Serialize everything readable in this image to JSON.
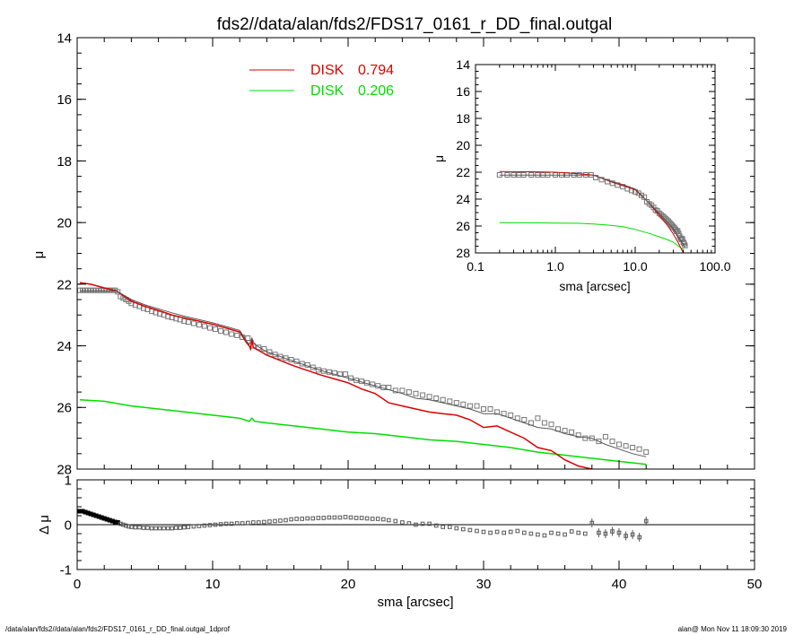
{
  "title": "fds2//data/alan/fds2/FDS17_0161_r_DD_final.outgal",
  "footer": {
    "left": "/data/alan/fds2//data/alan/fds2/FDS17_0161_r_DD_final.outgal_1dprof",
    "right": "alan@  Mon Nov 11 18:09:30 2019"
  },
  "colors": {
    "disk1": "#dd0000",
    "disk2": "#00dd00",
    "model": "#555555",
    "data": "#777777"
  },
  "chart_data": [
    {
      "id": "main",
      "type": "line",
      "xlabel": "",
      "ylabel": "μ",
      "xlim": [
        0,
        50
      ],
      "ylim": [
        28,
        14
      ],
      "x_ticks": [
        0,
        10,
        20,
        30,
        40,
        50
      ],
      "y_ticks": [
        14,
        16,
        18,
        20,
        22,
        24,
        26,
        28
      ],
      "legend": [
        {
          "name": "DISK",
          "value": "0.794",
          "color": "#dd0000"
        },
        {
          "name": "DISK",
          "value": "0.206",
          "color": "#00dd00"
        }
      ],
      "series": [
        {
          "name": "DISK 0.794",
          "color": "#dd0000",
          "x": [
            0.2,
            1,
            2,
            2.9,
            4,
            5,
            6,
            7,
            8,
            10,
            12,
            12.5,
            12.7,
            12.8,
            12.9,
            13,
            14,
            16,
            18,
            20,
            21,
            22,
            23,
            24,
            25,
            26,
            27,
            28,
            29,
            30,
            31,
            32,
            33,
            34,
            35,
            36,
            37,
            38,
            39,
            40,
            41,
            42
          ],
          "y": [
            21.95,
            22.0,
            22.12,
            22.22,
            22.55,
            22.72,
            22.85,
            23.0,
            23.1,
            23.3,
            23.55,
            23.9,
            24.0,
            24.1,
            23.8,
            24.05,
            24.3,
            24.65,
            24.95,
            25.2,
            25.4,
            25.55,
            25.85,
            25.95,
            26.05,
            26.15,
            26.2,
            26.25,
            26.4,
            26.65,
            26.6,
            26.8,
            27.0,
            27.3,
            27.4,
            27.7,
            27.9,
            28.0,
            28.15,
            28.3,
            28.5,
            28.7
          ]
        },
        {
          "name": "DISK 0.206",
          "color": "#00dd00",
          "x": [
            0.2,
            2,
            4,
            6,
            8,
            10,
            12,
            12.7,
            12.9,
            13.1,
            14,
            16,
            18,
            20,
            22,
            24,
            26,
            28,
            30,
            32,
            34,
            36,
            38,
            40,
            42
          ],
          "y": [
            25.75,
            25.8,
            25.95,
            26.05,
            26.15,
            26.25,
            26.35,
            26.45,
            26.35,
            26.45,
            26.5,
            26.6,
            26.7,
            26.8,
            26.85,
            26.95,
            27.05,
            27.1,
            27.2,
            27.3,
            27.45,
            27.55,
            27.65,
            27.75,
            27.85
          ]
        },
        {
          "name": "model",
          "color": "#555555",
          "x": [
            0.2,
            1,
            2,
            2.9,
            4,
            5,
            6,
            7,
            8,
            10,
            12,
            12.5,
            12.7,
            12.9,
            13.1,
            14,
            16,
            18,
            20,
            22,
            24,
            25,
            26,
            27,
            28,
            29,
            30,
            31,
            32,
            33,
            34,
            35,
            36,
            37,
            38,
            39,
            40,
            41,
            42
          ],
          "y": [
            22.22,
            22.22,
            22.22,
            22.22,
            22.5,
            22.67,
            22.8,
            22.93,
            23.05,
            23.25,
            23.5,
            23.85,
            23.95,
            23.75,
            23.95,
            24.2,
            24.5,
            24.8,
            25.05,
            25.3,
            25.55,
            25.7,
            25.75,
            25.85,
            25.95,
            26.05,
            26.2,
            26.2,
            26.35,
            26.5,
            26.65,
            26.7,
            26.85,
            26.95,
            27.0,
            27.2,
            27.35,
            27.5,
            27.6
          ]
        },
        {
          "name": "data",
          "color": "#777777",
          "x": [
            0.2,
            0.4,
            0.6,
            0.8,
            1.0,
            1.2,
            1.4,
            1.6,
            1.8,
            2.0,
            2.2,
            2.4,
            2.6,
            2.8,
            3.0,
            3.2,
            3.4,
            3.6,
            3.8,
            4.0,
            4.3,
            4.6,
            4.9,
            5.2,
            5.5,
            5.8,
            6.1,
            6.4,
            6.7,
            7.0,
            7.3,
            7.6,
            7.9,
            8.2,
            8.6,
            9.0,
            9.4,
            9.8,
            10.2,
            10.6,
            11.0,
            11.4,
            11.8,
            12.2,
            12.6,
            13.0,
            13.4,
            13.8,
            14.2,
            14.6,
            15.0,
            15.4,
            15.8,
            16.2,
            16.6,
            17.0,
            17.4,
            17.8,
            18.2,
            18.6,
            19.0,
            19.4,
            19.8,
            20.2,
            20.6,
            21.0,
            21.4,
            21.8,
            22.2,
            22.6,
            23.0,
            23.5,
            24.0,
            24.5,
            25.0,
            25.5,
            26.0,
            26.5,
            27.0,
            27.5,
            28.0,
            28.5,
            29.0,
            29.5,
            30.0,
            30.5,
            31.0,
            31.5,
            32.0,
            32.5,
            33.0,
            33.5,
            34.0,
            34.5,
            35.0,
            35.5,
            36.0,
            36.5,
            37.0,
            37.5,
            38.0,
            38.5,
            39.0,
            39.5,
            40.0,
            40.5,
            41.0,
            41.5,
            42.0
          ],
          "y": [
            22.2,
            22.2,
            22.2,
            22.2,
            22.2,
            22.2,
            22.2,
            22.2,
            22.2,
            22.2,
            22.2,
            22.2,
            22.2,
            22.2,
            22.25,
            22.4,
            22.45,
            22.5,
            22.55,
            22.62,
            22.68,
            22.72,
            22.78,
            22.82,
            22.88,
            22.92,
            22.96,
            23.0,
            23.05,
            23.08,
            23.12,
            23.15,
            23.2,
            23.23,
            23.27,
            23.32,
            23.36,
            23.42,
            23.46,
            23.52,
            23.56,
            23.62,
            23.66,
            23.72,
            23.75,
            24.0,
            24.05,
            24.1,
            24.2,
            24.28,
            24.35,
            24.4,
            24.45,
            24.5,
            24.58,
            24.62,
            24.7,
            24.78,
            24.82,
            24.85,
            24.88,
            24.92,
            24.92,
            25.05,
            25.12,
            25.15,
            25.2,
            25.25,
            25.3,
            25.35,
            25.35,
            25.45,
            25.45,
            25.5,
            25.55,
            25.6,
            25.65,
            25.7,
            25.75,
            25.8,
            25.85,
            25.9,
            25.95,
            25.95,
            26.05,
            26.05,
            26.15,
            26.2,
            26.25,
            26.35,
            26.4,
            26.5,
            26.35,
            26.5,
            26.55,
            26.7,
            26.75,
            26.8,
            26.9,
            27.0,
            27.0,
            27.1,
            26.95,
            27.1,
            27.2,
            27.25,
            27.3,
            27.35,
            27.45
          ]
        }
      ]
    },
    {
      "id": "residual",
      "type": "scatter",
      "xlabel": "sma [arcsec]",
      "ylabel": "Δ μ",
      "xlim": [
        0,
        50
      ],
      "ylim": [
        -1,
        1
      ],
      "x_ticks": [
        0,
        10,
        20,
        30,
        40,
        50
      ],
      "y_ticks": [
        -1,
        0,
        1
      ],
      "series": [
        {
          "name": "residual",
          "color": "#555555",
          "x": [
            0.2,
            0.4,
            0.6,
            0.8,
            1.0,
            1.2,
            1.4,
            1.6,
            1.8,
            2.0,
            2.2,
            2.4,
            2.6,
            2.8,
            3.0,
            3.2,
            3.4,
            3.6,
            3.8,
            4.0,
            4.3,
            4.6,
            4.9,
            5.2,
            5.5,
            5.8,
            6.1,
            6.4,
            6.7,
            7.0,
            7.3,
            7.6,
            7.9,
            8.2,
            8.6,
            9.0,
            9.4,
            9.8,
            10.2,
            10.6,
            11.0,
            11.4,
            11.8,
            12.2,
            12.6,
            13.0,
            13.4,
            13.8,
            14.2,
            14.6,
            15.0,
            15.4,
            15.8,
            16.2,
            16.6,
            17.0,
            17.4,
            17.8,
            18.2,
            18.6,
            19.0,
            19.4,
            19.8,
            20.2,
            20.6,
            21.0,
            21.4,
            21.8,
            22.2,
            22.6,
            23.0,
            23.5,
            24.0,
            24.5,
            25.0,
            25.5,
            26.0,
            26.5,
            27.0,
            27.5,
            28.0,
            28.5,
            29.0,
            29.5,
            30.0,
            30.5,
            31.0,
            31.5,
            32.0,
            32.5,
            33.0,
            33.5,
            34.0,
            34.5,
            35.0,
            35.5,
            36.0,
            36.5,
            37.0,
            37.5,
            38.0,
            38.5,
            39.0,
            39.5,
            40.0,
            40.5,
            41.0,
            41.5,
            42.0
          ],
          "y": [
            0.3,
            0.3,
            0.28,
            0.26,
            0.24,
            0.22,
            0.2,
            0.18,
            0.16,
            0.14,
            0.12,
            0.1,
            0.08,
            0.06,
            0.05,
            0.02,
            0.0,
            -0.02,
            -0.04,
            -0.05,
            -0.06,
            -0.06,
            -0.07,
            -0.07,
            -0.08,
            -0.08,
            -0.08,
            -0.08,
            -0.08,
            -0.08,
            -0.07,
            -0.07,
            -0.06,
            -0.05,
            -0.04,
            -0.03,
            -0.02,
            -0.01,
            0.0,
            0.01,
            0.02,
            0.02,
            0.03,
            0.03,
            0.04,
            0.05,
            0.05,
            0.06,
            0.07,
            0.08,
            0.09,
            0.1,
            0.12,
            0.13,
            0.13,
            0.14,
            0.14,
            0.15,
            0.15,
            0.16,
            0.16,
            0.16,
            0.17,
            0.16,
            0.15,
            0.15,
            0.14,
            0.13,
            0.13,
            0.12,
            0.1,
            0.08,
            0.05,
            0.03,
            0.0,
            0.02,
            0.02,
            -0.02,
            -0.05,
            -0.05,
            -0.08,
            -0.1,
            -0.12,
            -0.14,
            -0.16,
            -0.18,
            -0.16,
            -0.18,
            -0.16,
            -0.14,
            -0.18,
            -0.2,
            -0.22,
            -0.24,
            -0.18,
            -0.2,
            -0.22,
            -0.15,
            -0.18,
            -0.2,
            0.04,
            -0.18,
            -0.2,
            -0.15,
            -0.18,
            -0.25,
            -0.22,
            -0.28,
            0.08
          ]
        }
      ]
    },
    {
      "id": "inset",
      "type": "line",
      "xlabel": "sma [arcsec]",
      "ylabel": "μ",
      "xscale": "log",
      "xlim": [
        0.1,
        100
      ],
      "ylim": [
        28,
        14
      ],
      "x_tick_labels": [
        "0.1",
        "1.0",
        "10.0",
        "100.0"
      ],
      "x_ticks": [
        0.1,
        1,
        10,
        100
      ],
      "y_ticks": [
        14,
        16,
        18,
        20,
        22,
        24,
        26,
        28
      ],
      "series": [
        {
          "name": "DISK 0.794",
          "color": "#dd0000",
          "x": [
            0.2,
            0.5,
            1,
            2,
            3,
            5,
            7,
            10,
            15,
            20,
            25,
            30,
            35,
            40,
            42
          ],
          "y": [
            21.95,
            21.97,
            22.0,
            22.12,
            22.22,
            22.72,
            23.0,
            23.3,
            24.3,
            25.2,
            25.9,
            26.6,
            27.3,
            28.0,
            28.3
          ]
        },
        {
          "name": "DISK 0.206",
          "color": "#00dd00",
          "x": [
            0.2,
            0.5,
            1,
            2,
            3,
            5,
            7,
            10,
            15,
            20,
            25,
            30,
            35,
            40
          ],
          "y": [
            25.75,
            25.76,
            25.78,
            25.8,
            25.85,
            25.95,
            26.05,
            26.25,
            26.55,
            26.8,
            27.0,
            27.2,
            27.5,
            27.75
          ]
        },
        {
          "name": "model",
          "color": "#555555",
          "x": [
            0.2,
            0.5,
            1,
            2,
            3,
            5,
            7,
            10,
            15,
            20,
            25,
            30,
            35,
            40,
            42
          ],
          "y": [
            22.22,
            22.22,
            22.22,
            22.22,
            22.22,
            22.67,
            22.93,
            23.25,
            24.3,
            25.05,
            25.7,
            26.2,
            26.85,
            27.35,
            27.6
          ]
        },
        {
          "name": "data",
          "color": "#777777",
          "x": [
            0.2,
            0.25,
            0.3,
            0.35,
            0.4,
            0.5,
            0.6,
            0.7,
            0.8,
            1.0,
            1.2,
            1.4,
            1.7,
            2.0,
            2.4,
            2.8,
            3.2,
            3.8,
            4.5,
            5.2,
            6.0,
            7.0,
            8.0,
            9.0,
            10.0,
            11.0,
            12.0,
            13.0,
            14.0,
            15.0,
            16.0,
            17.0,
            18.0,
            19.0,
            20.0,
            21.0,
            22.0,
            23.0,
            24.0,
            25.0,
            26.0,
            27.0,
            28.0,
            29.0,
            30.0,
            31.0,
            32.0,
            33.0,
            34.0,
            35.0,
            36.0,
            37.0,
            38.0,
            39.0,
            40.0,
            41.0,
            42.0
          ],
          "y": [
            22.2,
            22.2,
            22.2,
            22.2,
            22.2,
            22.2,
            22.2,
            22.2,
            22.2,
            22.2,
            22.2,
            22.2,
            22.2,
            22.2,
            22.2,
            22.2,
            22.4,
            22.55,
            22.7,
            22.82,
            22.96,
            23.08,
            23.23,
            23.36,
            23.46,
            23.56,
            23.72,
            23.85,
            24.2,
            24.35,
            24.45,
            24.62,
            24.82,
            24.88,
            25.05,
            25.15,
            25.25,
            25.35,
            25.45,
            25.55,
            25.65,
            25.75,
            25.85,
            25.95,
            26.05,
            26.15,
            26.25,
            26.4,
            26.35,
            26.55,
            26.75,
            26.9,
            27.0,
            26.95,
            27.2,
            27.3,
            27.45
          ]
        }
      ]
    }
  ]
}
